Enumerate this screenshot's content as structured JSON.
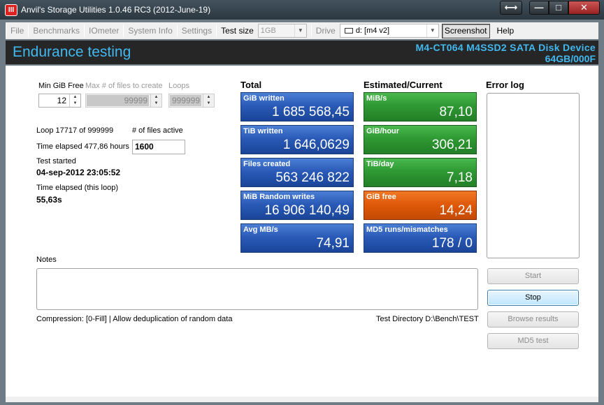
{
  "window": {
    "title": "Anvil's Storage Utilities 1.0.46 RC3 (2012-June-19)",
    "app_icon_text": "III",
    "swap_glyph": "⟷",
    "min_glyph": "—",
    "max_glyph": "□",
    "close_glyph": "✕"
  },
  "toolbar": {
    "file": "File",
    "benchmarks": "Benchmarks",
    "iometer": "IOmeter",
    "system_info": "System Info",
    "settings": "Settings",
    "test_size_label": "Test size",
    "test_size_value": "1GB",
    "drive_label": "Drive",
    "drive_value": "d: [m4 v2]",
    "screenshot": "Screenshot",
    "help": "Help"
  },
  "header": {
    "title": "Endurance testing",
    "device_name": "M4-CT064 M4SSD2 SATA Disk Device",
    "device_info": "64GB/000F"
  },
  "params": {
    "min_gib_free_label": "Min GiB Free",
    "min_gib_free_value": "12",
    "max_files_label": "Max # of files to create",
    "max_files_value": "99999",
    "loops_label": "Loops",
    "loops_value": "999999"
  },
  "status": {
    "loop_text": "Loop 17717 of 999999",
    "files_active_label": "# of files active",
    "files_active_value": "1600",
    "time_elapsed_text": "Time elapsed 477,86 hours",
    "test_started_label": "Test started",
    "test_started_value": "04-sep-2012 23:05:52",
    "loop_elapsed_label": "Time elapsed (this loop)",
    "loop_elapsed_value": "55,63s"
  },
  "total": {
    "heading": "Total",
    "tiles": [
      {
        "label": "GiB written",
        "value": "1 685 568,45"
      },
      {
        "label": "TiB written",
        "value": "1 646,0629"
      },
      {
        "label": "Files created",
        "value": "563 246 822"
      },
      {
        "label": "MiB Random writes",
        "value": "16 906 140,49"
      },
      {
        "label": "Avg MB/s",
        "value": "74,91"
      }
    ]
  },
  "estimated": {
    "heading": "Estimated/Current",
    "tiles": [
      {
        "label": "MiB/s",
        "value": "87,10"
      },
      {
        "label": "GiB/hour",
        "value": "306,21"
      },
      {
        "label": "TiB/day",
        "value": "7,18"
      },
      {
        "label": "GiB free",
        "value": "14,24"
      },
      {
        "label": "MD5 runs/mismatches",
        "value": "178 / 0"
      }
    ]
  },
  "error_log": {
    "heading": "Error log"
  },
  "notes": {
    "label": "Notes"
  },
  "footer": {
    "compression": "Compression: [0-Fill]  | Allow deduplication of random data",
    "test_directory": "Test Directory D:\\Bench\\TEST"
  },
  "buttons": {
    "start": "Start",
    "stop": "Stop",
    "browse": "Browse results",
    "md5": "MD5 test"
  },
  "colors": {
    "accent": "#41b8f0",
    "tile_blue": "#2a5bb8",
    "tile_green": "#2f9a33",
    "tile_orange": "#e05a0a"
  }
}
